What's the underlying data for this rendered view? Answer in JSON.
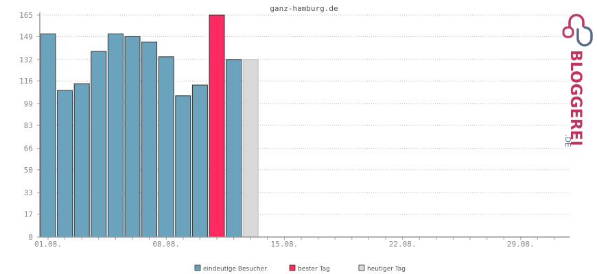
{
  "chart_data": {
    "type": "bar",
    "title": "ganz-hamburg.de",
    "categories": [
      "01.08.",
      "02.08.",
      "03.08.",
      "04.08.",
      "05.08.",
      "06.08.",
      "07.08.",
      "08.08.",
      "09.08.",
      "10.08.",
      "11.08.",
      "12.08.",
      "13.08."
    ],
    "values": [
      151,
      109,
      114,
      138,
      151,
      149,
      145,
      134,
      105,
      113,
      165,
      132,
      132
    ],
    "bar_types": [
      "visitors",
      "visitors",
      "visitors",
      "visitors",
      "visitors",
      "visitors",
      "visitors",
      "visitors",
      "visitors",
      "visitors",
      "best",
      "visitors",
      "today"
    ],
    "days_in_month": 31,
    "x_tick_labels": [
      {
        "day": 1,
        "label": "01.08."
      },
      {
        "day": 8,
        "label": "08.08."
      },
      {
        "day": 15,
        "label": "15.08."
      },
      {
        "day": 22,
        "label": "22.08."
      },
      {
        "day": 29,
        "label": "29.08."
      }
    ],
    "y_ticks": [
      0,
      17,
      33,
      50,
      66,
      83,
      99,
      116,
      132,
      149,
      165
    ],
    "ylim": [
      0,
      165
    ],
    "grid": true,
    "legend_position": "bottom",
    "legend": [
      {
        "key": "visitors",
        "label": "eindeutige Besucher",
        "color": "#6aa3bb"
      },
      {
        "key": "best",
        "label": "bester Tag",
        "color": "#ff2a5f"
      },
      {
        "key": "today",
        "label": "heutiger Tag",
        "color": "#d8d8d8"
      }
    ]
  },
  "logo": {
    "text_main": "BLOGGEREI",
    "text_suffix": ".DE",
    "color_main": "#c0355f",
    "color_accent": "#5a6a86"
  }
}
